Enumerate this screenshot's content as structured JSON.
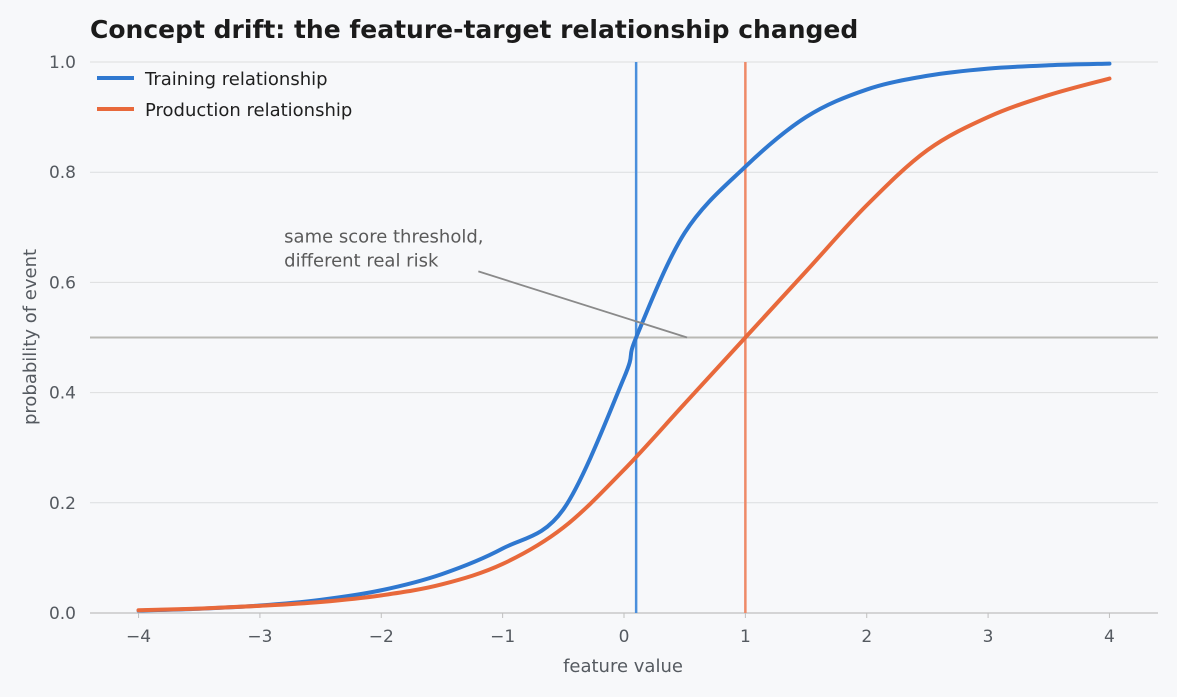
{
  "chart_data": {
    "type": "line",
    "title": "Concept drift: the feature-target relationship changed",
    "xlabel": "feature value",
    "ylabel": "probability of event",
    "xlim": [
      -4.4,
      4.4
    ],
    "ylim": [
      0,
      1.0
    ],
    "xticks": [
      -4,
      -3,
      -2,
      -1,
      0,
      1,
      2,
      3,
      4
    ],
    "xtick_labels": [
      "−4",
      "−3",
      "−2",
      "−1",
      "0",
      "1",
      "2",
      "3",
      "4"
    ],
    "yticks": [
      0.0,
      0.2,
      0.4,
      0.6,
      0.8,
      1.0
    ],
    "ytick_labels": [
      "0.0",
      "0.2",
      "0.4",
      "0.6",
      "0.8",
      "1.0"
    ],
    "grid": "horizontal",
    "legend_position": "top-left",
    "series": [
      {
        "name": "Training relationship",
        "color": "#2f78d0",
        "x": [
          -4,
          -3.5,
          -3,
          -2.5,
          -2,
          -1.5,
          -1,
          -0.5,
          0,
          0.1,
          0.5,
          1,
          1.5,
          2,
          2.5,
          3,
          3.5,
          4
        ],
        "y": [
          0.0045,
          0.0078,
          0.0136,
          0.0239,
          0.0413,
          0.0706,
          0.117,
          0.188,
          0.427,
          0.5,
          0.69,
          0.81,
          0.9,
          0.95,
          0.975,
          0.988,
          0.994,
          0.997
        ]
      },
      {
        "name": "Production relationship",
        "color": "#e8693b",
        "x": [
          -4,
          -3.5,
          -3,
          -2.5,
          -2,
          -1.5,
          -1,
          -0.5,
          0,
          0.5,
          1,
          1.5,
          2,
          2.5,
          3,
          3.5,
          4
        ],
        "y": [
          0.005,
          0.008,
          0.013,
          0.02,
          0.032,
          0.052,
          0.089,
          0.155,
          0.26,
          0.38,
          0.5,
          0.62,
          0.74,
          0.84,
          0.9,
          0.94,
          0.97
        ]
      }
    ],
    "reference_lines": [
      {
        "orientation": "horizontal",
        "value": 0.5,
        "color": "#b9b9b4"
      },
      {
        "orientation": "vertical",
        "value": 0.1,
        "color": "#4a8fdc"
      },
      {
        "orientation": "vertical",
        "value": 1.0,
        "color": "#ee8a68"
      }
    ],
    "annotation": {
      "lines": [
        "same score threshold,",
        "different real risk"
      ],
      "text_at": [
        -2.8,
        0.64
      ],
      "arrow_from": [
        -1.2,
        0.62
      ],
      "arrow_to": [
        0.52,
        0.5
      ]
    }
  }
}
